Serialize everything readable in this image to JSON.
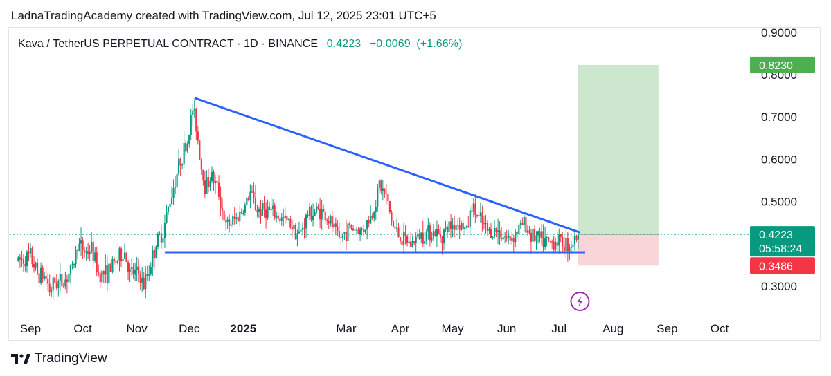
{
  "header": {
    "attribution": "LadnaTradingAcademy created with TradingView.com, Jul 12, 2025 23:01 UTC+5"
  },
  "legend": {
    "symbol": "Kava / TetherUS PERPETUAL CONTRACT · 1D · BINANCE",
    "price": "0.4223",
    "change": "+0.0069",
    "change_pct": "(+1.66%)"
  },
  "footer": {
    "brand": "TradingView"
  },
  "colors": {
    "up": "#089981",
    "down": "#f23645",
    "trend": "#2962ff",
    "target_fill": "#cde7cf",
    "stop_fill": "#fad5d8",
    "target_tag": "#4caf50",
    "stop_tag": "#f23645",
    "price_tag": "#089981"
  },
  "chart_data": {
    "type": "candlestick",
    "title": "Kava / TetherUS PERPETUAL CONTRACT · 1D · BINANCE",
    "ylim": [
      0.25,
      0.92
    ],
    "xlim": [
      "2024-08-25",
      "2025-10-31"
    ],
    "y_ticks": [
      "0.9000",
      "0.8000",
      "0.7000",
      "0.6000",
      "0.5000",
      "0.3000"
    ],
    "x_ticks": [
      {
        "label": "Sep",
        "date": "2024-09-01"
      },
      {
        "label": "Oct",
        "date": "2024-10-01"
      },
      {
        "label": "Nov",
        "date": "2024-11-01"
      },
      {
        "label": "Dec",
        "date": "2024-12-01"
      },
      {
        "label": "2025",
        "date": "2025-01-01"
      },
      {
        "label": "Mar",
        "date": "2025-03-01"
      },
      {
        "label": "Apr",
        "date": "2025-04-01"
      },
      {
        "label": "May",
        "date": "2025-05-01"
      },
      {
        "label": "Jun",
        "date": "2025-06-01"
      },
      {
        "label": "Jul",
        "date": "2025-07-01"
      },
      {
        "label": "Aug",
        "date": "2025-08-01"
      },
      {
        "label": "Sep",
        "date": "2025-09-01"
      },
      {
        "label": "Oct",
        "date": "2025-10-01"
      }
    ],
    "close_path": [
      [
        "2024-08-25",
        0.36
      ],
      [
        "2024-09-01",
        0.37
      ],
      [
        "2024-09-05",
        0.33
      ],
      [
        "2024-09-10",
        0.32
      ],
      [
        "2024-09-12",
        0.29
      ],
      [
        "2024-09-15",
        0.31
      ],
      [
        "2024-09-20",
        0.31
      ],
      [
        "2024-09-25",
        0.34
      ],
      [
        "2024-09-28",
        0.4
      ],
      [
        "2024-10-03",
        0.38
      ],
      [
        "2024-10-06",
        0.39
      ],
      [
        "2024-10-10",
        0.33
      ],
      [
        "2024-10-15",
        0.33
      ],
      [
        "2024-10-20",
        0.36
      ],
      [
        "2024-10-25",
        0.38
      ],
      [
        "2024-10-28",
        0.33
      ],
      [
        "2024-11-02",
        0.33
      ],
      [
        "2024-11-05",
        0.3
      ],
      [
        "2024-11-08",
        0.34
      ],
      [
        "2024-11-12",
        0.4
      ],
      [
        "2024-11-16",
        0.43
      ],
      [
        "2024-11-21",
        0.52
      ],
      [
        "2024-11-26",
        0.6
      ],
      [
        "2024-11-30",
        0.64
      ],
      [
        "2024-12-03",
        0.72
      ],
      [
        "2024-12-05",
        0.68
      ],
      [
        "2024-12-08",
        0.58
      ],
      [
        "2024-12-10",
        0.54
      ],
      [
        "2024-12-14",
        0.56
      ],
      [
        "2024-12-18",
        0.52
      ],
      [
        "2024-12-22",
        0.44
      ],
      [
        "2024-12-28",
        0.46
      ],
      [
        "2025-01-02",
        0.49
      ],
      [
        "2025-01-05",
        0.52
      ],
      [
        "2025-01-09",
        0.48
      ],
      [
        "2025-01-15",
        0.48
      ],
      [
        "2025-01-22",
        0.46
      ],
      [
        "2025-01-28",
        0.45
      ],
      [
        "2025-02-02",
        0.42
      ],
      [
        "2025-02-07",
        0.47
      ],
      [
        "2025-02-14",
        0.48
      ],
      [
        "2025-02-20",
        0.45
      ],
      [
        "2025-02-25",
        0.41
      ],
      [
        "2025-03-03",
        0.44
      ],
      [
        "2025-03-10",
        0.43
      ],
      [
        "2025-03-16",
        0.47
      ],
      [
        "2025-03-20",
        0.54
      ],
      [
        "2025-03-24",
        0.51
      ],
      [
        "2025-03-28",
        0.44
      ],
      [
        "2025-04-02",
        0.41
      ],
      [
        "2025-04-07",
        0.4
      ],
      [
        "2025-04-12",
        0.42
      ],
      [
        "2025-04-18",
        0.43
      ],
      [
        "2025-04-24",
        0.42
      ],
      [
        "2025-04-29",
        0.44
      ],
      [
        "2025-05-05",
        0.45
      ],
      [
        "2025-05-09",
        0.43
      ],
      [
        "2025-05-12",
        0.49
      ],
      [
        "2025-05-16",
        0.46
      ],
      [
        "2025-05-21",
        0.43
      ],
      [
        "2025-05-27",
        0.43
      ],
      [
        "2025-06-02",
        0.41
      ],
      [
        "2025-06-07",
        0.43
      ],
      [
        "2025-06-11",
        0.45
      ],
      [
        "2025-06-15",
        0.42
      ],
      [
        "2025-06-20",
        0.41
      ],
      [
        "2025-06-25",
        0.4
      ],
      [
        "2025-06-30",
        0.41
      ],
      [
        "2025-07-04",
        0.4
      ],
      [
        "2025-07-08",
        0.4
      ],
      [
        "2025-07-12",
        0.4223
      ]
    ],
    "lines": [
      {
        "name": "descending-resistance",
        "from": [
          "2024-12-04",
          0.745
        ],
        "to": [
          "2025-07-13",
          0.427
        ]
      },
      {
        "name": "horizontal-support",
        "from": [
          "2024-11-17",
          0.38
        ],
        "to": [
          "2025-07-16",
          0.38
        ]
      }
    ],
    "position": {
      "entry": 0.4223,
      "target": 0.823,
      "stop": 0.3486,
      "start": "2025-07-12",
      "end": "2025-08-27",
      "target_label": "0.8230",
      "stop_label": "0.3486"
    },
    "current": {
      "price_label": "0.4223",
      "countdown": "05:58:24"
    },
    "event_icon_date": "2025-07-13"
  }
}
